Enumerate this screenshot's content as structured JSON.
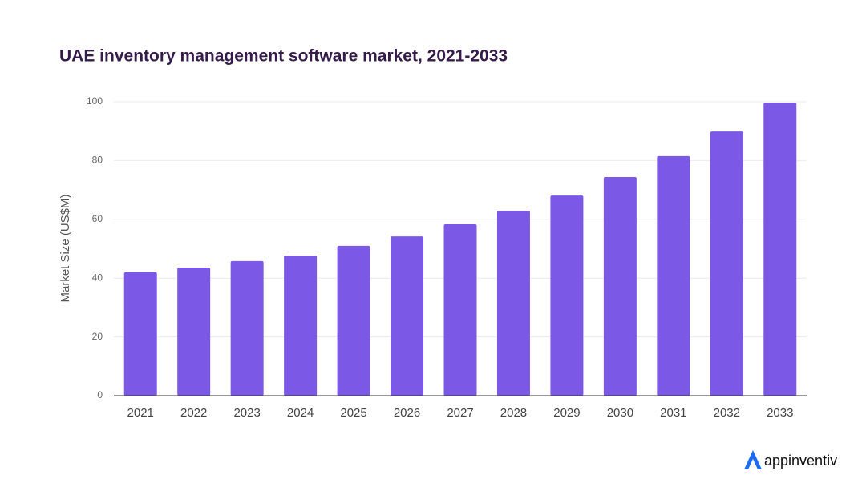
{
  "chart_data": {
    "type": "bar",
    "title": "UAE inventory management software market, 2021-2033",
    "y_label": "Market Size (US$M)",
    "categories": [
      "2021",
      "2022",
      "2023",
      "2024",
      "2025",
      "2026",
      "2027",
      "2028",
      "2029",
      "2030",
      "2031",
      "2032",
      "2033"
    ],
    "values": [
      42.0,
      43.6,
      45.8,
      47.7,
      51.0,
      54.2,
      58.3,
      62.9,
      68.1,
      74.4,
      81.5,
      89.9,
      99.7
    ],
    "color": "#7b59e6",
    "ylim": [
      0,
      100
    ],
    "yticks": [
      0,
      20,
      40,
      60,
      80,
      100
    ],
    "grid": true
  },
  "brand": "appinventiv"
}
